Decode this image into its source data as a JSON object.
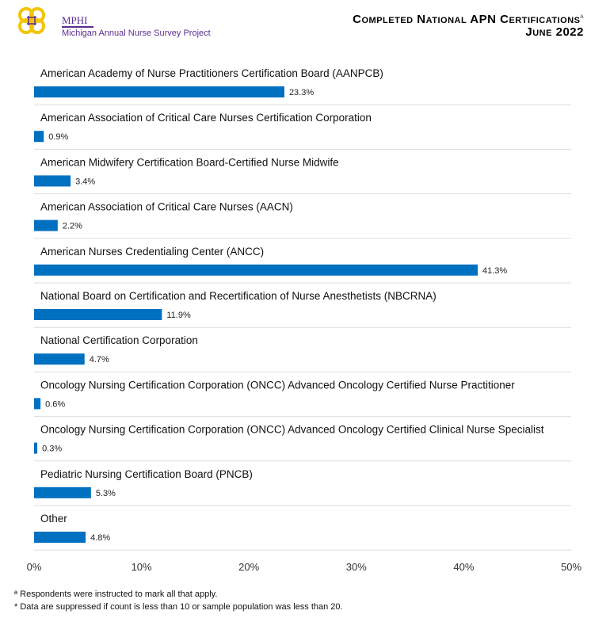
{
  "header": {
    "logo_name": "MPHI",
    "logo_subtitle": "Michigan Annual Nurse Survey Project",
    "title_line1": "Completed National APN Certifications",
    "title_sup": "a",
    "title_line2": "June 2022"
  },
  "chart_data": {
    "type": "bar",
    "orientation": "horizontal",
    "categories": [
      "American Academy of Nurse Practitioners Certification Board (AANPCB)",
      "American Association of Critical Care Nurses Certification Corporation",
      "American Midwifery Certification Board-Certified Nurse Midwife",
      "American Association of Critical Care Nurses (AACN)",
      "American Nurses Credentialing Center (ANCC)",
      "National Board on Certification and Recertification of Nurse Anesthetists (NBCRNA)",
      "National Certification Corporation",
      "Oncology Nursing Certification Corporation (ONCC) Advanced Oncology Certified Nurse Practitioner",
      "Oncology Nursing Certification Corporation (ONCC) Advanced Oncology Certified Clinical Nurse Specialist",
      "Pediatric Nursing Certification Board (PNCB)",
      "Other"
    ],
    "values": [
      23.3,
      0.9,
      3.4,
      2.2,
      41.3,
      11.9,
      4.7,
      0.6,
      0.3,
      5.3,
      4.8
    ],
    "data_labels": [
      "23.3%",
      "0.9%",
      "3.4%",
      "2.2%",
      "41.3%",
      "11.9%",
      "4.7%",
      "0.6%",
      "0.3%",
      "5.3%",
      "4.8%"
    ],
    "xlim": [
      0,
      50
    ],
    "xticks": [
      "0%",
      "10%",
      "20%",
      "30%",
      "40%",
      "50%"
    ],
    "bar_color": "#0070c0",
    "grid": false,
    "legend": "none"
  },
  "footnotes": [
    "ª Respondents were instructed to mark all that apply.",
    "* Data are suppressed if count is less than 10 or sample population was less than 20."
  ]
}
